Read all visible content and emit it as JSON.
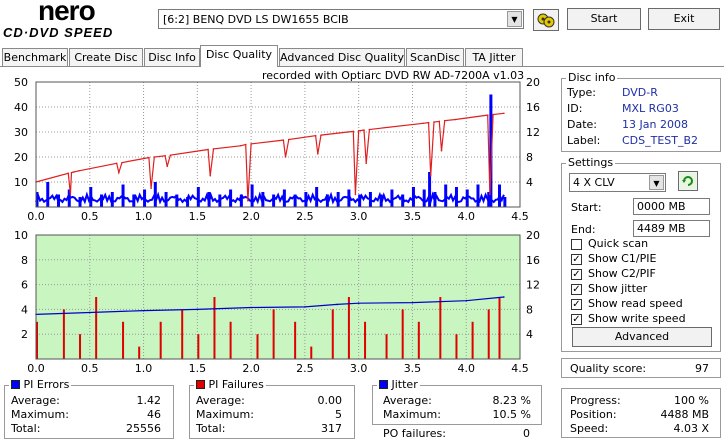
{
  "logo": {
    "title": "nero",
    "subtitle": "CD·DVD SPEED"
  },
  "drive": {
    "selected": "[6:2]  BENQ DVD LS DW1655 BCIB"
  },
  "toolbar": {
    "start_label": "Start",
    "exit_label": "Exit",
    "icon": "drive-refresh-icon"
  },
  "tabs": [
    "Benchmark",
    "Create Disc",
    "Disc Info",
    "Disc Quality",
    "Advanced Disc Quality",
    "ScanDisc",
    "TA Jitter"
  ],
  "active_tab": "Disc Quality",
  "colors": {
    "plot_bg_top": "#ffffff",
    "plot_bg_bottom": "#c8f5c0",
    "pie": "#0000ff",
    "speed": "#e02020",
    "pif": "#e00000",
    "jitter": "#0000cc"
  },
  "chart_data": [
    {
      "type": "line",
      "title": "recorded with Optiarc DVD RW AD-7200A  v1.03",
      "xlim": [
        0,
        4.5
      ],
      "ylim": [
        0,
        50
      ],
      "y2lim": [
        0,
        20
      ],
      "xticks": [
        "0.0",
        "0.5",
        "1.0",
        "1.5",
        "2.0",
        "2.5",
        "3.0",
        "3.5",
        "4.0",
        "4.5"
      ],
      "yticks": [
        "10",
        "20",
        "30",
        "40",
        "50"
      ],
      "y2ticks": [
        "4",
        "8",
        "12",
        "16",
        "20"
      ],
      "series": [
        {
          "kind": "bars",
          "axis": "left",
          "x": [
            0.0,
            0.1,
            0.2,
            0.3,
            0.4,
            0.5,
            0.6,
            0.7,
            0.8,
            0.9,
            1.0,
            1.1,
            1.2,
            1.3,
            1.4,
            1.5,
            1.6,
            1.7,
            1.8,
            1.9,
            2.0,
            2.1,
            2.2,
            2.3,
            2.4,
            2.5,
            2.6,
            2.7,
            2.8,
            2.9,
            3.0,
            3.1,
            3.2,
            3.3,
            3.4,
            3.5,
            3.6,
            3.65,
            3.7,
            3.8,
            3.9,
            4.0,
            4.1,
            4.2,
            4.22,
            4.3,
            4.35
          ],
          "y": [
            6,
            10,
            5,
            7,
            4,
            8,
            5,
            6,
            9,
            5,
            7,
            10,
            6,
            5,
            4,
            8,
            6,
            5,
            7,
            5,
            9,
            6,
            5,
            7,
            5,
            6,
            8,
            5,
            6,
            7,
            5,
            6,
            5,
            7,
            5,
            8,
            7,
            14,
            6,
            9,
            8,
            7,
            9,
            6,
            45,
            9,
            4
          ]
        },
        {
          "kind": "line",
          "axis": "right",
          "x": [
            0.0,
            0.3,
            0.32,
            0.33,
            0.35,
            0.4,
            0.75,
            0.77,
            0.8,
            1.05,
            1.07,
            1.1,
            1.2,
            1.22,
            1.25,
            1.6,
            1.62,
            1.65,
            1.9,
            1.95,
            1.97,
            2.0,
            2.3,
            2.32,
            2.35,
            2.6,
            2.62,
            2.65,
            2.9,
            2.95,
            2.97,
            3.0,
            3.05,
            3.07,
            3.1,
            3.6,
            3.65,
            3.67,
            3.7,
            3.75,
            3.77,
            3.8,
            3.9,
            4.2,
            4.22,
            4.25,
            4.35
          ],
          "y": [
            4.0,
            5.4,
            2.0,
            5.5,
            5.6,
            5.8,
            7.0,
            5.5,
            7.1,
            7.9,
            3.0,
            8.0,
            8.2,
            6.5,
            8.3,
            9.2,
            5.0,
            9.3,
            9.8,
            10.0,
            1.0,
            10.1,
            10.7,
            8.0,
            10.8,
            11.4,
            8.5,
            11.5,
            12.0,
            12.1,
            2.0,
            12.2,
            12.3,
            7.0,
            12.4,
            13.4,
            13.5,
            5.0,
            13.6,
            13.7,
            9.0,
            13.8,
            14.0,
            14.7,
            2.0,
            14.8,
            15.0
          ]
        }
      ]
    },
    {
      "type": "line",
      "xlim": [
        0,
        4.5
      ],
      "ylim": [
        0,
        10
      ],
      "y2lim": [
        0,
        20
      ],
      "xticks": [
        "0.0",
        "0.5",
        "1.0",
        "1.5",
        "2.0",
        "2.5",
        "3.0",
        "3.5",
        "4.0",
        "4.5"
      ],
      "yticks": [
        "2",
        "4",
        "6",
        "8",
        "10"
      ],
      "y2ticks": [
        "4",
        "8",
        "12",
        "16",
        "20"
      ],
      "series": [
        {
          "kind": "bars",
          "axis": "left",
          "x": [
            0.0,
            0.25,
            0.4,
            0.55,
            0.8,
            0.95,
            1.15,
            1.35,
            1.5,
            1.65,
            1.8,
            2.05,
            2.2,
            2.4,
            2.55,
            2.75,
            2.9,
            3.05,
            3.25,
            3.4,
            3.55,
            3.75,
            3.9,
            4.05,
            4.2,
            4.3
          ],
          "y": [
            3,
            4,
            2,
            5,
            3,
            1,
            3,
            4,
            2,
            5,
            3,
            2,
            4,
            3,
            1,
            4,
            5,
            3,
            2,
            4,
            3,
            5,
            2,
            3,
            4,
            5
          ]
        },
        {
          "kind": "line",
          "axis": "right",
          "x": [
            0.0,
            0.5,
            1.0,
            1.5,
            2.0,
            2.5,
            2.8,
            3.0,
            3.5,
            4.0,
            4.35
          ],
          "y": [
            7.2,
            7.5,
            7.8,
            8.0,
            8.3,
            8.4,
            8.8,
            9.0,
            9.1,
            9.4,
            10.0
          ]
        }
      ]
    }
  ],
  "stats": {
    "pi_errors": {
      "title": "PI Errors",
      "average_label": "Average:",
      "average": "1.42",
      "maximum_label": "Maximum:",
      "maximum": "46",
      "total_label": "Total:",
      "total": "25556",
      "color": "#0000ff"
    },
    "pi_failures": {
      "title": "PI Failures",
      "average_label": "Average:",
      "average": "0.00",
      "maximum_label": "Maximum:",
      "maximum": "5",
      "total_label": "Total:",
      "total": "317",
      "color": "#e00000"
    },
    "jitter": {
      "title": "Jitter",
      "average_label": "Average:",
      "average": "8.23 %",
      "maximum_label": "Maximum:",
      "maximum": "10.5 %",
      "color": "#0000ff"
    },
    "po_failures": {
      "label": "PO failures:",
      "value": "0"
    }
  },
  "disc_info": {
    "title": "Disc info",
    "type_label": "Type:",
    "type": "DVD-R",
    "id_label": "ID:",
    "id": "MXL RG03",
    "date_label": "Date:",
    "date": "13 Jan 2008",
    "label_label": "Label:",
    "label": "CDS_TEST_B2"
  },
  "settings": {
    "title": "Settings",
    "speed": "4 X CLV",
    "start_label": "Start:",
    "start": "0000 MB",
    "end_label": "End:",
    "end": "4489 MB",
    "checks": [
      {
        "label": "Quick scan",
        "checked": false
      },
      {
        "label": "Show C1/PIE",
        "checked": true
      },
      {
        "label": "Show C2/PIF",
        "checked": true
      },
      {
        "label": "Show jitter",
        "checked": true
      },
      {
        "label": "Show read speed",
        "checked": true
      },
      {
        "label": "Show write speed",
        "checked": true
      }
    ],
    "advanced_label": "Advanced"
  },
  "quality": {
    "label": "Quality score:",
    "value": "97"
  },
  "progress": {
    "progress_label": "Progress:",
    "progress": "100 %",
    "position_label": "Position:",
    "position": "4488 MB",
    "speed_label": "Speed:",
    "speed": "4.03 X"
  }
}
